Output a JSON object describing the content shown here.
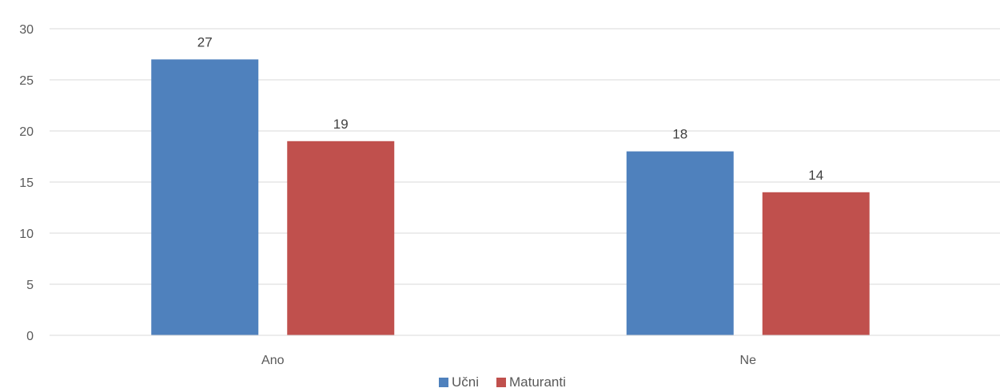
{
  "chart_data": {
    "type": "bar",
    "title": "",
    "categories": [
      "Ano",
      "Ne"
    ],
    "series": [
      {
        "name": "Učni",
        "values": [
          27,
          18
        ],
        "color": "#4f81bd"
      },
      {
        "name": "Maturanti",
        "values": [
          19,
          14
        ],
        "color": "#c0504d"
      }
    ],
    "ylim": [
      0,
      30
    ],
    "yticks": [
      0,
      5,
      10,
      15,
      20,
      25,
      30
    ],
    "grid": true,
    "legend": "bottom",
    "data_labels": true
  },
  "colors": {
    "grid": "#d9d9d9",
    "axis_text": "#595959"
  }
}
